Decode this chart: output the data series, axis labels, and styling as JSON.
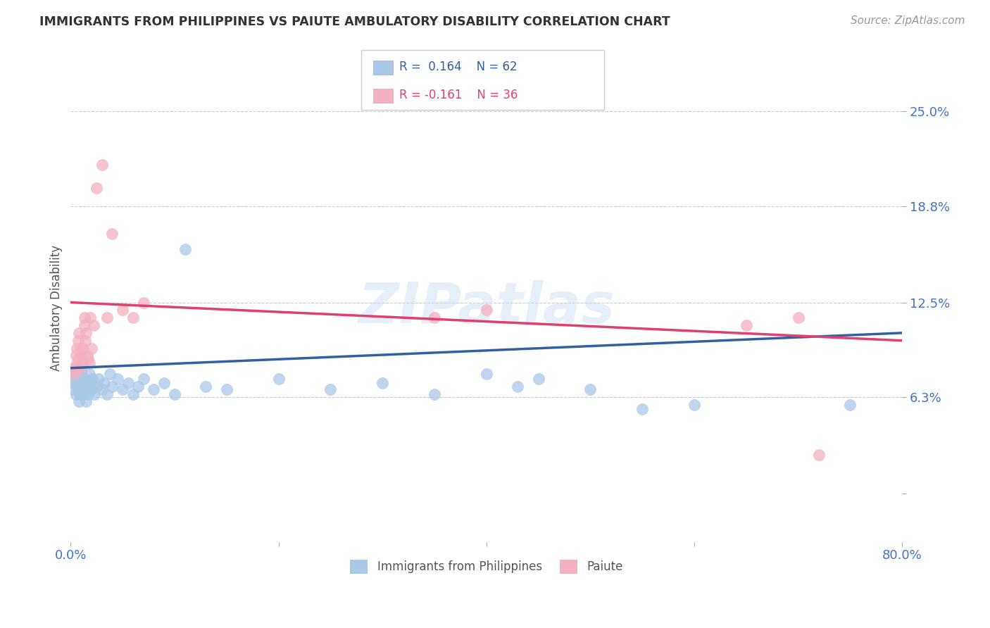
{
  "title": "IMMIGRANTS FROM PHILIPPINES VS PAIUTE AMBULATORY DISABILITY CORRELATION CHART",
  "source": "Source: ZipAtlas.com",
  "ylabel": "Ambulatory Disability",
  "xmin": 0.0,
  "xmax": 0.8,
  "ymin": -0.032,
  "ymax": 0.275,
  "yticks": [
    0.0,
    0.063,
    0.125,
    0.188,
    0.25
  ],
  "ytick_labels": [
    "",
    "6.3%",
    "12.5%",
    "18.8%",
    "25.0%"
  ],
  "xticks": [
    0.0,
    0.2,
    0.4,
    0.6,
    0.8
  ],
  "xtick_labels": [
    "0.0%",
    "",
    "",
    "",
    "80.0%"
  ],
  "grid_color": "#cccccc",
  "blue_color": "#a8c8e8",
  "pink_color": "#f4b0c0",
  "blue_line_color": "#3060a0",
  "pink_line_color": "#e04070",
  "legend_r1": "R =  0.164",
  "legend_n1": "N = 62",
  "legend_r2": "R = -0.161",
  "legend_n2": "N = 36",
  "legend_label1": "Immigrants from Philippines",
  "legend_label2": "Paiute",
  "blue_scatter_x": [
    0.002,
    0.003,
    0.004,
    0.004,
    0.005,
    0.005,
    0.006,
    0.006,
    0.007,
    0.007,
    0.008,
    0.008,
    0.009,
    0.009,
    0.01,
    0.01,
    0.011,
    0.011,
    0.012,
    0.012,
    0.013,
    0.014,
    0.015,
    0.015,
    0.016,
    0.017,
    0.018,
    0.019,
    0.02,
    0.021,
    0.022,
    0.023,
    0.025,
    0.027,
    0.03,
    0.032,
    0.035,
    0.038,
    0.04,
    0.045,
    0.05,
    0.055,
    0.06,
    0.065,
    0.07,
    0.08,
    0.09,
    0.1,
    0.11,
    0.13,
    0.15,
    0.2,
    0.25,
    0.3,
    0.35,
    0.4,
    0.43,
    0.45,
    0.5,
    0.55,
    0.6,
    0.75
  ],
  "blue_scatter_y": [
    0.075,
    0.068,
    0.072,
    0.08,
    0.065,
    0.078,
    0.07,
    0.082,
    0.068,
    0.075,
    0.06,
    0.078,
    0.072,
    0.065,
    0.068,
    0.08,
    0.072,
    0.075,
    0.068,
    0.065,
    0.07,
    0.075,
    0.068,
    0.06,
    0.072,
    0.065,
    0.078,
    0.07,
    0.068,
    0.075,
    0.072,
    0.065,
    0.07,
    0.075,
    0.068,
    0.072,
    0.065,
    0.078,
    0.07,
    0.075,
    0.068,
    0.072,
    0.065,
    0.07,
    0.075,
    0.068,
    0.072,
    0.065,
    0.16,
    0.07,
    0.068,
    0.075,
    0.068,
    0.072,
    0.065,
    0.078,
    0.07,
    0.075,
    0.068,
    0.055,
    0.058,
    0.058
  ],
  "pink_scatter_x": [
    0.003,
    0.004,
    0.005,
    0.006,
    0.006,
    0.007,
    0.007,
    0.008,
    0.008,
    0.009,
    0.01,
    0.01,
    0.011,
    0.012,
    0.013,
    0.013,
    0.014,
    0.015,
    0.016,
    0.017,
    0.018,
    0.019,
    0.02,
    0.022,
    0.025,
    0.03,
    0.035,
    0.04,
    0.05,
    0.06,
    0.07,
    0.35,
    0.4,
    0.65,
    0.7,
    0.72
  ],
  "pink_scatter_y": [
    0.082,
    0.078,
    0.09,
    0.095,
    0.085,
    0.1,
    0.088,
    0.082,
    0.105,
    0.095,
    0.09,
    0.088,
    0.085,
    0.095,
    0.115,
    0.11,
    0.1,
    0.105,
    0.09,
    0.088,
    0.085,
    0.115,
    0.095,
    0.11,
    0.2,
    0.215,
    0.115,
    0.17,
    0.12,
    0.115,
    0.125,
    0.115,
    0.12,
    0.11,
    0.115,
    0.025
  ],
  "watermark": "ZIPatlas",
  "title_color": "#333333",
  "tick_color": "#4472c4"
}
